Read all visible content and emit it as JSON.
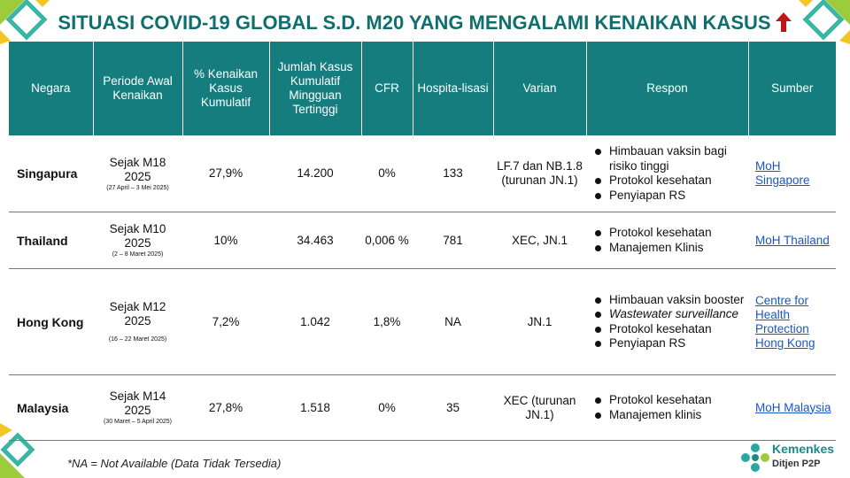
{
  "title": "SITUASI COVID-19 GLOBAL S.D. M20 YANG MENGALAMI KENAIKAN KASUS",
  "colors": {
    "header_bg": "#167d7f",
    "title": "#0f6f6f",
    "arrow": "#c0161b",
    "link": "#1a55c8"
  },
  "table": {
    "headers": {
      "negara": "Negara",
      "periode": "Periode Awal Kenaikan",
      "kenaikan": "% Kenaikan Kasus Kumulatif",
      "jumlah": "Jumlah Kasus Kumulatif Mingguan Tertinggi",
      "cfr": "CFR",
      "hosp": "Hospita-lisasi",
      "varian": "Varian",
      "respon": "Respon",
      "sumber": "Sumber"
    },
    "rows": [
      {
        "negara": "Singapura",
        "periode": "Sejak M18 2025",
        "periode_detail": "(27 April – 3 Mei 2025)",
        "kenaikan": "27,9%",
        "jumlah": "14.200",
        "cfr": "0%",
        "hosp": "133",
        "varian": "LF.7 dan NB.1.8 (turunan JN.1)",
        "respon": [
          "Himbauan vaksin bagi risiko tinggi",
          "Protokol kesehatan",
          "Penyiapan RS"
        ],
        "sumber": "MoH Singapore"
      },
      {
        "negara": "Thailand",
        "periode": "Sejak M10 2025",
        "periode_detail": "(2 – 8 Maret 2025)",
        "kenaikan": "10%",
        "jumlah": "34.463",
        "cfr": "0,006 %",
        "hosp": "781",
        "varian": "XEC, JN.1",
        "respon": [
          "Protokol kesehatan",
          "Manajemen Klinis"
        ],
        "sumber": "MoH Thailand"
      },
      {
        "negara": "Hong Kong",
        "periode": "Sejak M12 2025",
        "periode_detail": "(16 – 22 Maret 2025)",
        "kenaikan": "7,2%",
        "jumlah": "1.042",
        "cfr": "1,8%",
        "hosp": "NA",
        "varian": "JN.1",
        "respon": [
          "Himbauan vaksin booster",
          "Wastewater surveillance",
          "Protokol kesehatan",
          "Penyiapan RS"
        ],
        "sumber": "Centre for Health Protection Hong Kong"
      },
      {
        "negara": "Malaysia",
        "periode": "Sejak M14 2025",
        "periode_detail": "(30 Maret – 5 April 2025)",
        "kenaikan": "27,8%",
        "jumlah": "1.518",
        "cfr": "0%",
        "hosp": "35",
        "varian": "XEC (turunan JN.1)",
        "respon": [
          "Protokol kesehatan",
          "Manajemen klinis"
        ],
        "sumber": "MoH Malaysia"
      }
    ]
  },
  "footnote": "*NA = Not Available (Data Tidak Tersedia)",
  "logo": {
    "name": "Kemenkes",
    "sub": "Ditjen P2P"
  }
}
